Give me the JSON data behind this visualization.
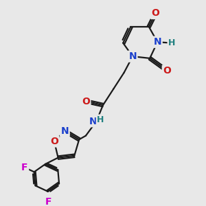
{
  "bg_color": "#e8e8e8",
  "bond_color": "#1a1a1a",
  "bond_width": 1.6,
  "atom_colors": {
    "N": "#1a3fcc",
    "O": "#cc1a1a",
    "F": "#cc00cc",
    "H_label": "#208080",
    "C": "#1a1a1a"
  },
  "font_size_atom": 10,
  "font_size_h": 9
}
